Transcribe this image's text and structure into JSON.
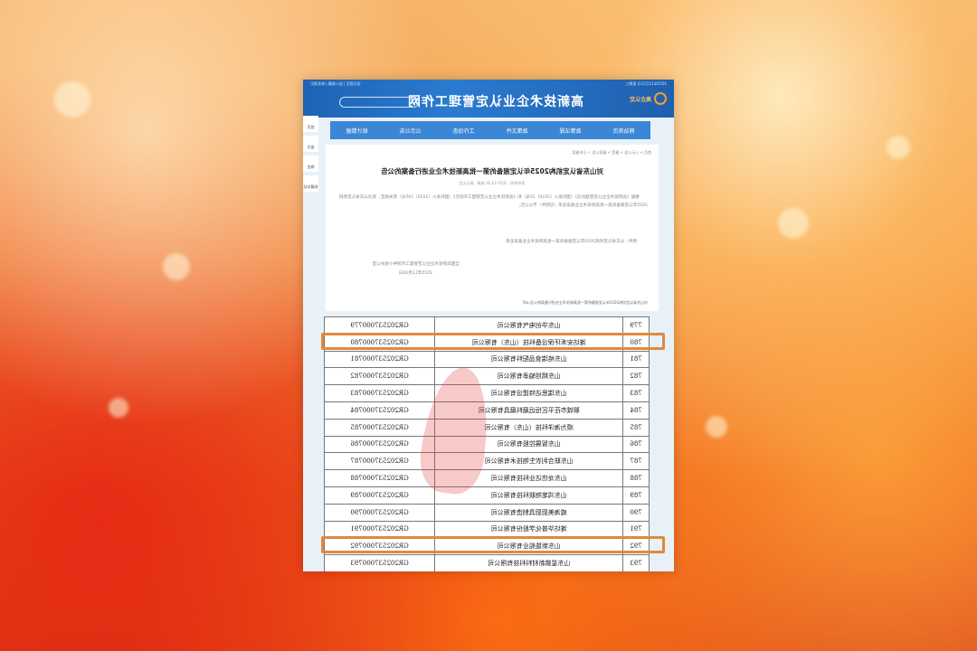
{
  "site": {
    "top_date": "2025年12月31日 星期三",
    "top_links": "设为首页 | 加入收藏 | 联系我们",
    "logo_text": "高企认定",
    "title": "高新技术企业认定管理工作网",
    "search_placeholder": ""
  },
  "nav": [
    "网站首页",
    "政策法规",
    "政策文件",
    "工作动态",
    "公示公告",
    "统计数据"
  ],
  "sidebar": [
    "首页",
    "留言",
    "微信",
    "收藏本站"
  ],
  "article": {
    "breadcrumb": "首页 > 公示公告 > 备案 > 备案公告 > 山东备案",
    "title": "对山东省认定机构2025年认定报备的第一批高新技术企业进行备案的公告",
    "meta": "发布时间：2025-12-26 来源：高企认定",
    "body": "根据《高新技术企业认定管理办法》（国科发火〔2016〕32号）和《高新技术企业认定管理工作指引》（国科发火〔2016〕195号）有关规定，现对山东省认定机构2025年认定报备的第一批高新技术企业备案名单（见附件）予以公告。",
    "attachment": "附件：山东省认定机构2025年认定报备的第一批高新技术企业备案名单",
    "signer": "全国高新技术企业认定管理工作领导小组办公室",
    "date": "2025年12月26日",
    "file": "对山东省认定机构2025年认定报备的第一批高新技术企业进行备案的公告.pdf"
  },
  "table": {
    "rows": [
      {
        "no": "779",
        "company": "山东华创电气有限公司",
        "code": "GR202537000779"
      },
      {
        "no": "780",
        "company": "潍坊安禾环保设备科技（山东）有限公司",
        "code": "GR202537000780",
        "highlighted": true
      },
      {
        "no": "781",
        "company": "山东格瑞食品配料有限公司",
        "code": "GR202537000781"
      },
      {
        "no": "782",
        "company": "山东精旭轴承有限公司",
        "code": "GR202537000782"
      },
      {
        "no": "783",
        "company": "山东瑞思达特建设有限公司",
        "code": "GR202537000783"
      },
      {
        "no": "784",
        "company": "聊城市茌平区恒远磨料磨具有限公司",
        "code": "GR202537000784"
      },
      {
        "no": "785",
        "company": "顺为海洋科技（山东）有限公司",
        "code": "GR202537000785"
      },
      {
        "no": "786",
        "company": "山东智展控股有限公司",
        "code": "GR202537000786"
      },
      {
        "no": "787",
        "company": "山东联合利农生物技术有限公司",
        "code": "GR202537000787"
      },
      {
        "no": "788",
        "company": "山东龙信达业科技有限公司",
        "code": "GR202537000788"
      },
      {
        "no": "789",
        "company": "山东鸿笔物联科技有限公司",
        "code": "GR202537000789"
      },
      {
        "no": "790",
        "company": "威海美厨厨具制造有限公司",
        "code": "GR202537000790"
      },
      {
        "no": "791",
        "company": "潍坊华普化学股份有限公司",
        "code": "GR202537000791"
      },
      {
        "no": "792",
        "company": "山东新能船业有限公司",
        "code": "GR202537000792",
        "highlighted": true
      },
      {
        "no": "793",
        "company": "山东星鹏新材料科技有限公司",
        "code": "GR202537000793"
      }
    ]
  },
  "colors": {
    "highlight": "#e08a3c",
    "header": "#2a7bd0"
  }
}
